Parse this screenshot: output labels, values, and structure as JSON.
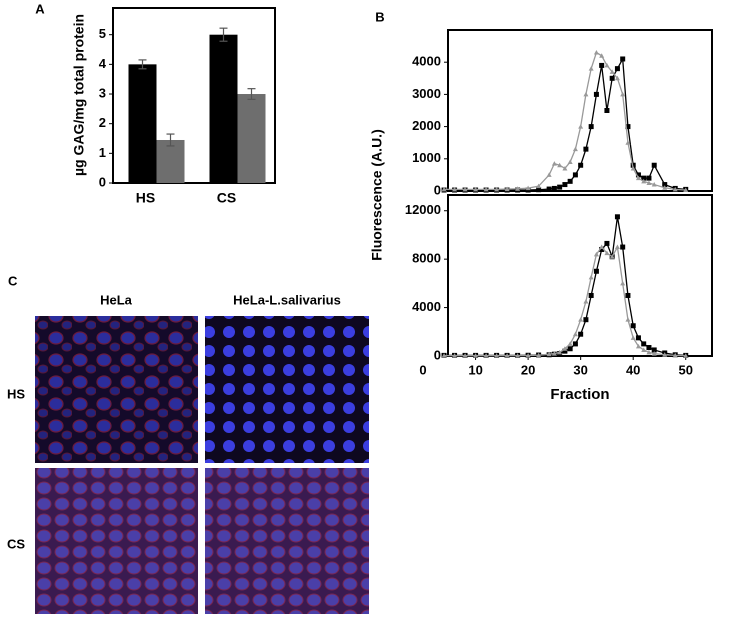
{
  "chart_data": [
    {
      "type": "bar",
      "panel_label": "A",
      "ylabel": "µg GAG/mg total protein",
      "categories": [
        "HS",
        "CS"
      ],
      "series": [
        {
          "color": "#000000",
          "values": [
            4.0,
            5.0
          ],
          "errors": [
            0.15,
            0.22
          ]
        },
        {
          "color": "#6e6e6e",
          "values": [
            1.45,
            3.0
          ],
          "errors": [
            0.2,
            0.18
          ]
        }
      ],
      "ylim": [
        0,
        5.9
      ],
      "yticks": [
        0,
        1,
        2,
        3,
        4,
        5
      ]
    },
    {
      "type": "line",
      "panel_label": "B",
      "ylabel": "Fluorescence (A.U.)",
      "x": [
        4,
        6,
        8,
        10,
        12,
        14,
        16,
        18,
        20,
        22,
        24,
        25,
        26,
        27,
        28,
        29,
        30,
        31,
        32,
        33,
        34,
        35,
        36,
        37,
        38,
        39,
        40,
        41,
        42,
        43,
        44,
        46,
        48,
        50
      ],
      "series": [
        {
          "color": "#000000",
          "values": [
            30,
            30,
            30,
            30,
            30,
            30,
            30,
            30,
            30,
            40,
            60,
            80,
            120,
            200,
            300,
            500,
            800,
            1300,
            2000,
            3000,
            3900,
            2500,
            3500,
            3800,
            4100,
            2000,
            800,
            500,
            400,
            400,
            800,
            200,
            80,
            50
          ]
        },
        {
          "color": "#999999",
          "values": [
            50,
            50,
            50,
            50,
            50,
            50,
            60,
            70,
            90,
            150,
            500,
            850,
            800,
            700,
            900,
            1300,
            2000,
            3000,
            3800,
            4300,
            4200,
            3900,
            3700,
            3500,
            3000,
            1500,
            700,
            400,
            300,
            250,
            200,
            100,
            50,
            30
          ]
        }
      ],
      "xlim": [
        4.75,
        55
      ],
      "ylim": [
        0,
        5000
      ],
      "yticks": [
        0,
        1000,
        2000,
        3000,
        4000
      ]
    },
    {
      "type": "line",
      "xlabel": "Fraction",
      "x": [
        4,
        6,
        8,
        10,
        12,
        14,
        16,
        18,
        20,
        22,
        24,
        25,
        26,
        27,
        28,
        29,
        30,
        31,
        32,
        33,
        34,
        35,
        36,
        37,
        38,
        39,
        40,
        41,
        42,
        43,
        44,
        46,
        48,
        50
      ],
      "series": [
        {
          "color": "#000000",
          "values": [
            50,
            50,
            50,
            50,
            50,
            50,
            50,
            50,
            60,
            80,
            100,
            150,
            200,
            400,
            600,
            1000,
            1800,
            3000,
            5000,
            7000,
            8800,
            9300,
            8200,
            11500,
            9000,
            5000,
            2500,
            1500,
            1000,
            700,
            500,
            250,
            100,
            50
          ]
        },
        {
          "color": "#999999",
          "values": [
            30,
            30,
            30,
            30,
            30,
            30,
            30,
            30,
            40,
            60,
            150,
            200,
            300,
            600,
            1000,
            1800,
            3000,
            4500,
            6500,
            8400,
            9000,
            8500,
            8200,
            9000,
            6000,
            3000,
            1500,
            800,
            500,
            300,
            200,
            100,
            50,
            20
          ]
        }
      ],
      "xlim": [
        4.75,
        55
      ],
      "xticks": [
        0,
        10,
        20,
        30,
        40,
        50
      ],
      "ylim": [
        0,
        13300
      ],
      "yticks": [
        0,
        4000,
        8000,
        12000
      ]
    }
  ],
  "panel_c": {
    "label": "C",
    "columns": [
      "HeLa",
      "HeLa-L.salivarius"
    ],
    "rows": [
      "HS",
      "CS"
    ]
  }
}
